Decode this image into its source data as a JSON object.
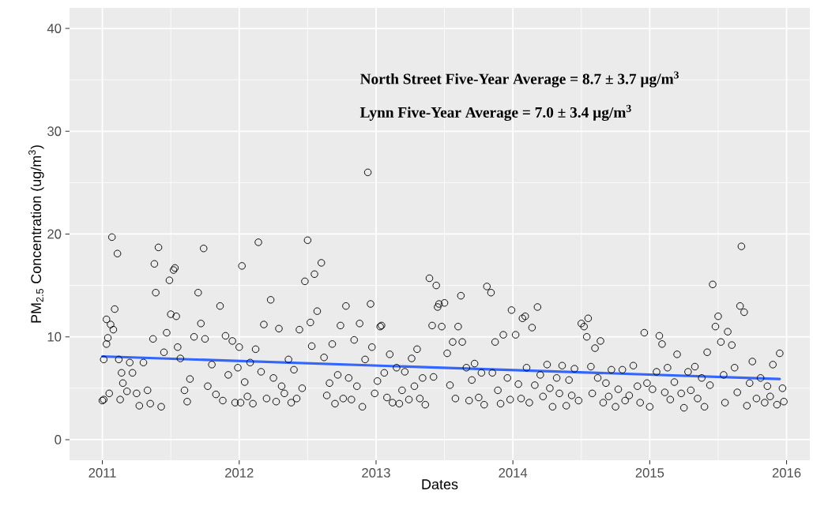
{
  "chart_data": {
    "type": "scatter",
    "xlabel": "Dates",
    "ylabel": "PM$_{2.5}$ Concentration (ug/m$^{3}$)",
    "annotations": [
      "North Street Five-Year Average = 8.7 ± 3.7 µg/m$^{3}$",
      "Lynn Five-Year Average = 7.0 ± 3.4 µg/m$^{3}$"
    ],
    "xlim": [
      2010.76,
      2016.17
    ],
    "ylim": [
      -2,
      42
    ],
    "xticks": [
      2011,
      2012,
      2013,
      2014,
      2015,
      2016
    ],
    "yticks": [
      0,
      10,
      20,
      30,
      40
    ],
    "grid": true,
    "series": [
      {
        "marker": "circle",
        "color": "#000000",
        "x": [
          2011.0,
          2011.01,
          2011.01,
          2011.03,
          2011.04,
          2011.03,
          2011.06,
          2011.08,
          2011.09,
          2011.07,
          2011.11,
          2011.05,
          2011.12,
          2011.14,
          2011.15,
          2011.13,
          2011.18,
          2011.2,
          2011.22,
          2011.25,
          2011.27,
          2011.3,
          2011.33,
          2011.35,
          2011.37,
          2011.38,
          2011.39,
          2011.41,
          2011.43,
          2011.45,
          2011.47,
          2011.49,
          2011.5,
          2011.52,
          2011.53,
          2011.54,
          2011.55,
          2011.57,
          2011.6,
          2011.62,
          2011.64,
          2011.67,
          2011.7,
          2011.72,
          2011.74,
          2011.75,
          2011.77,
          2011.8,
          2011.83,
          2011.86,
          2011.88,
          2011.9,
          2011.92,
          2011.95,
          2011.97,
          2011.99,
          2012.0,
          2012.01,
          2012.02,
          2012.04,
          2012.06,
          2012.08,
          2012.1,
          2012.12,
          2012.14,
          2012.16,
          2012.18,
          2012.2,
          2012.23,
          2012.25,
          2012.27,
          2012.29,
          2012.31,
          2012.33,
          2012.36,
          2012.38,
          2012.4,
          2012.42,
          2012.44,
          2012.46,
          2012.48,
          2012.5,
          2012.52,
          2012.53,
          2012.55,
          2012.57,
          2012.6,
          2012.62,
          2012.64,
          2012.66,
          2012.68,
          2012.7,
          2012.72,
          2012.74,
          2012.76,
          2012.78,
          2012.8,
          2012.82,
          2012.84,
          2012.86,
          2012.88,
          2012.9,
          2012.92,
          2012.94,
          2012.96,
          2012.97,
          2012.99,
          2013.01,
          2013.03,
          2013.04,
          2013.06,
          2013.08,
          2013.1,
          2013.12,
          2013.15,
          2013.17,
          2013.19,
          2013.21,
          2013.24,
          2013.26,
          2013.28,
          2013.3,
          2013.32,
          2013.34,
          2013.36,
          2013.39,
          2013.41,
          2013.42,
          2013.44,
          2013.45,
          2013.46,
          2013.48,
          2013.5,
          2013.52,
          2013.54,
          2013.56,
          2013.58,
          2013.6,
          2013.62,
          2013.63,
          2013.66,
          2013.68,
          2013.7,
          2013.72,
          2013.75,
          2013.77,
          2013.79,
          2013.81,
          2013.84,
          2013.85,
          2013.87,
          2013.89,
          2013.91,
          2013.93,
          2013.96,
          2013.98,
          2013.99,
          2014.02,
          2014.04,
          2014.06,
          2014.07,
          2014.09,
          2014.1,
          2014.12,
          2014.14,
          2014.16,
          2014.18,
          2014.2,
          2014.22,
          2014.25,
          2014.27,
          2014.29,
          2014.32,
          2014.34,
          2014.36,
          2014.39,
          2014.41,
          2014.43,
          2014.45,
          2014.48,
          2014.5,
          2014.52,
          2014.54,
          2014.55,
          2014.57,
          2014.58,
          2014.6,
          2014.62,
          2014.64,
          2014.66,
          2014.68,
          2014.7,
          2014.72,
          2014.75,
          2014.77,
          2014.8,
          2014.82,
          2014.85,
          2014.88,
          2014.91,
          2014.93,
          2014.96,
          2014.98,
          2015.0,
          2015.02,
          2015.05,
          2015.07,
          2015.09,
          2015.11,
          2015.13,
          2015.15,
          2015.18,
          2015.2,
          2015.23,
          2015.25,
          2015.28,
          2015.3,
          2015.33,
          2015.35,
          2015.38,
          2015.4,
          2015.42,
          2015.44,
          2015.46,
          2015.48,
          2015.5,
          2015.52,
          2015.54,
          2015.55,
          2015.57,
          2015.6,
          2015.62,
          2015.64,
          2015.66,
          2015.67,
          2015.69,
          2015.71,
          2015.73,
          2015.75,
          2015.78,
          2015.81,
          2015.84,
          2015.86,
          2015.88,
          2015.9,
          2015.93,
          2015.95,
          2015.97,
          2015.98
        ],
        "values": [
          3.8,
          3.9,
          7.8,
          9.3,
          9.9,
          11.7,
          11.2,
          10.7,
          12.7,
          19.7,
          18.1,
          4.5,
          7.8,
          6.5,
          5.5,
          3.9,
          4.7,
          7.5,
          6.5,
          4.5,
          3.3,
          7.5,
          4.8,
          3.5,
          9.8,
          17.1,
          14.3,
          18.7,
          3.2,
          8.5,
          10.4,
          15.5,
          12.2,
          16.5,
          16.7,
          12.0,
          9.0,
          7.9,
          4.8,
          3.7,
          5.9,
          10.0,
          14.3,
          11.3,
          18.6,
          9.8,
          5.2,
          7.3,
          4.4,
          13.0,
          3.8,
          10.1,
          6.3,
          9.6,
          3.6,
          7.0,
          9.0,
          3.6,
          16.9,
          5.6,
          4.2,
          7.5,
          3.5,
          8.8,
          19.2,
          6.6,
          11.2,
          4.0,
          13.6,
          6.0,
          3.7,
          10.8,
          5.2,
          4.5,
          7.8,
          3.6,
          6.8,
          4.0,
          10.7,
          5.0,
          15.4,
          19.4,
          11.4,
          9.1,
          16.1,
          12.5,
          17.2,
          8.0,
          4.3,
          5.5,
          9.3,
          3.5,
          6.3,
          11.1,
          4.0,
          13.0,
          6.0,
          3.9,
          9.7,
          5.2,
          11.3,
          3.2,
          7.8,
          26.0,
          13.2,
          9.0,
          4.5,
          5.7,
          11.0,
          11.1,
          6.5,
          4.1,
          8.3,
          3.6,
          7.0,
          3.5,
          4.8,
          6.6,
          3.9,
          7.9,
          5.2,
          8.8,
          4.0,
          6.0,
          3.4,
          15.7,
          11.1,
          6.1,
          15.0,
          12.9,
          13.2,
          11.0,
          13.3,
          8.4,
          5.3,
          9.5,
          4.0,
          11.0,
          14.0,
          9.5,
          7.0,
          3.8,
          5.8,
          7.4,
          4.1,
          6.5,
          3.4,
          14.9,
          14.3,
          6.5,
          9.5,
          4.8,
          3.5,
          10.2,
          6.0,
          3.9,
          12.6,
          10.2,
          5.4,
          4.0,
          11.8,
          12.0,
          7.0,
          3.6,
          10.9,
          5.3,
          12.9,
          6.3,
          4.2,
          7.3,
          5.0,
          3.2,
          6.0,
          4.5,
          7.2,
          3.3,
          5.8,
          4.3,
          6.9,
          3.8,
          11.3,
          11.0,
          10.0,
          11.8,
          7.1,
          4.5,
          8.9,
          6.0,
          9.6,
          3.6,
          5.5,
          4.2,
          6.8,
          3.2,
          4.9,
          6.8,
          3.8,
          4.3,
          7.2,
          5.2,
          3.6,
          10.4,
          5.5,
          3.2,
          4.9,
          6.6,
          10.1,
          9.3,
          4.6,
          7.0,
          3.9,
          5.6,
          8.3,
          4.5,
          3.1,
          6.6,
          4.8,
          7.1,
          4.0,
          6.0,
          3.2,
          8.5,
          5.3,
          15.1,
          11.0,
          12.0,
          9.5,
          6.3,
          3.6,
          10.5,
          9.2,
          7.0,
          4.6,
          13.0,
          18.8,
          12.4,
          3.3,
          5.5,
          7.6,
          4.0,
          6.0,
          3.6,
          5.2,
          4.2,
          7.3,
          3.4,
          8.4,
          5.0,
          3.7
        ]
      },
      {
        "type": "line",
        "marker": "none",
        "color": "#3366ff",
        "x": [
          2011.0,
          2015.95
        ],
        "values": [
          8.1,
          5.9
        ]
      }
    ]
  }
}
